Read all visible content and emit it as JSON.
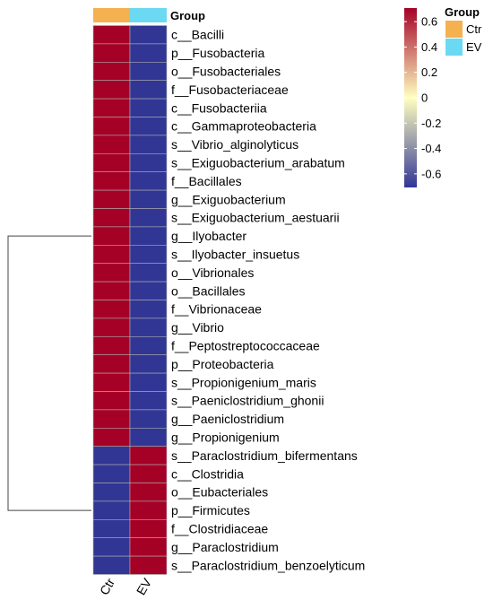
{
  "chart_data": {
    "type": "heatmap",
    "title": "",
    "xlabel": "",
    "ylabel": "",
    "columns": [
      "Ctr",
      "EV"
    ],
    "rows": [
      "c__Bacilli",
      "p__Fusobacteria",
      "o__Fusobacteriales",
      "f__Fusobacteriaceae",
      "c__Fusobacteriia",
      "c__Gammaproteobacteria",
      "s__Vibrio_alginolyticus",
      "s__Exiguobacterium_arabatum",
      "f__Bacillales",
      "g__Exiguobacterium",
      "s__Exiguobacterium_aestuarii",
      "g__Ilyobacter",
      "s__Ilyobacter_insuetus",
      "o__Vibrionales",
      "o__Bacillales",
      "f__Vibrionaceae",
      "g__Vibrio",
      "f__Peptostreptococcaceae",
      "p__Proteobacteria",
      "s__Propionigenium_maris",
      "s__Paeniclostridium_ghonii",
      "g__Paeniclostridium",
      "g__Propionigenium",
      "s__Paraclostridium_bifermentans",
      "c__Clostridia",
      "o__Eubacteriales",
      "p__Firmicutes",
      "f__Clostridiaceae",
      "g__Paraclostridium",
      "s__Paraclostridium_benzoelyticum"
    ],
    "values": [
      [
        0.707,
        -0.707
      ],
      [
        0.707,
        -0.707
      ],
      [
        0.707,
        -0.707
      ],
      [
        0.707,
        -0.707
      ],
      [
        0.707,
        -0.707
      ],
      [
        0.707,
        -0.707
      ],
      [
        0.707,
        -0.707
      ],
      [
        0.707,
        -0.707
      ],
      [
        0.707,
        -0.707
      ],
      [
        0.707,
        -0.707
      ],
      [
        0.707,
        -0.707
      ],
      [
        0.707,
        -0.707
      ],
      [
        0.707,
        -0.707
      ],
      [
        0.707,
        -0.707
      ],
      [
        0.707,
        -0.707
      ],
      [
        0.707,
        -0.707
      ],
      [
        0.707,
        -0.707
      ],
      [
        0.707,
        -0.707
      ],
      [
        0.707,
        -0.707
      ],
      [
        0.707,
        -0.707
      ],
      [
        0.707,
        -0.707
      ],
      [
        0.707,
        -0.707
      ],
      [
        0.707,
        -0.707
      ],
      [
        -0.707,
        0.707
      ],
      [
        -0.707,
        0.707
      ],
      [
        -0.707,
        0.707
      ],
      [
        -0.707,
        0.707
      ],
      [
        -0.707,
        0.707
      ],
      [
        -0.707,
        0.707
      ],
      [
        -0.707,
        0.707
      ]
    ],
    "annotation": {
      "label": "Group",
      "legend_title": "Group",
      "levels": [
        {
          "name": "Ctr",
          "color": "#f5b04f"
        },
        {
          "name": "EV",
          "color": "#6bd9f2"
        }
      ]
    },
    "color_scale": {
      "min": -0.707,
      "max": 0.707,
      "low_color": "#313695",
      "mid_color": "#ffffbf",
      "high_color": "#a50026",
      "ticks": [
        "0.6",
        "0.4",
        "0.2",
        "0",
        "-0.2",
        "-0.4",
        "-0.6"
      ]
    },
    "row_clusters": [
      23,
      7
    ],
    "legend_position": "top-right",
    "grid": true
  }
}
